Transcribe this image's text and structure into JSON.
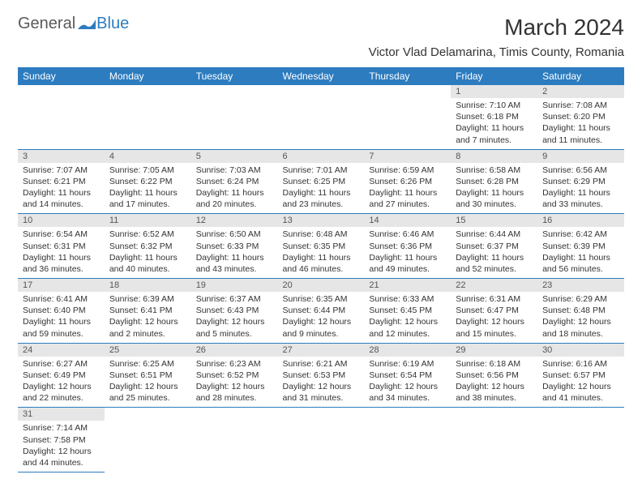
{
  "brand": {
    "part1": "General",
    "part2": "Blue",
    "colors": {
      "text": "#5a5a5a",
      "accent": "#2d7cc0"
    }
  },
  "title": "March 2024",
  "location": "Victor Vlad Delamarina, Timis County, Romania",
  "header_bg": "#2d7cc0",
  "header_text_color": "#ffffff",
  "day_headers": [
    "Sunday",
    "Monday",
    "Tuesday",
    "Wednesday",
    "Thursday",
    "Friday",
    "Saturday"
  ],
  "weeks": [
    [
      null,
      null,
      null,
      null,
      null,
      {
        "n": "1",
        "sunrise": "7:10 AM",
        "sunset": "6:18 PM",
        "day": "11 hours and 7 minutes."
      },
      {
        "n": "2",
        "sunrise": "7:08 AM",
        "sunset": "6:20 PM",
        "day": "11 hours and 11 minutes."
      }
    ],
    [
      {
        "n": "3",
        "sunrise": "7:07 AM",
        "sunset": "6:21 PM",
        "day": "11 hours and 14 minutes."
      },
      {
        "n": "4",
        "sunrise": "7:05 AM",
        "sunset": "6:22 PM",
        "day": "11 hours and 17 minutes."
      },
      {
        "n": "5",
        "sunrise": "7:03 AM",
        "sunset": "6:24 PM",
        "day": "11 hours and 20 minutes."
      },
      {
        "n": "6",
        "sunrise": "7:01 AM",
        "sunset": "6:25 PM",
        "day": "11 hours and 23 minutes."
      },
      {
        "n": "7",
        "sunrise": "6:59 AM",
        "sunset": "6:26 PM",
        "day": "11 hours and 27 minutes."
      },
      {
        "n": "8",
        "sunrise": "6:58 AM",
        "sunset": "6:28 PM",
        "day": "11 hours and 30 minutes."
      },
      {
        "n": "9",
        "sunrise": "6:56 AM",
        "sunset": "6:29 PM",
        "day": "11 hours and 33 minutes."
      }
    ],
    [
      {
        "n": "10",
        "sunrise": "6:54 AM",
        "sunset": "6:31 PM",
        "day": "11 hours and 36 minutes."
      },
      {
        "n": "11",
        "sunrise": "6:52 AM",
        "sunset": "6:32 PM",
        "day": "11 hours and 40 minutes."
      },
      {
        "n": "12",
        "sunrise": "6:50 AM",
        "sunset": "6:33 PM",
        "day": "11 hours and 43 minutes."
      },
      {
        "n": "13",
        "sunrise": "6:48 AM",
        "sunset": "6:35 PM",
        "day": "11 hours and 46 minutes."
      },
      {
        "n": "14",
        "sunrise": "6:46 AM",
        "sunset": "6:36 PM",
        "day": "11 hours and 49 minutes."
      },
      {
        "n": "15",
        "sunrise": "6:44 AM",
        "sunset": "6:37 PM",
        "day": "11 hours and 52 minutes."
      },
      {
        "n": "16",
        "sunrise": "6:42 AM",
        "sunset": "6:39 PM",
        "day": "11 hours and 56 minutes."
      }
    ],
    [
      {
        "n": "17",
        "sunrise": "6:41 AM",
        "sunset": "6:40 PM",
        "day": "11 hours and 59 minutes."
      },
      {
        "n": "18",
        "sunrise": "6:39 AM",
        "sunset": "6:41 PM",
        "day": "12 hours and 2 minutes."
      },
      {
        "n": "19",
        "sunrise": "6:37 AM",
        "sunset": "6:43 PM",
        "day": "12 hours and 5 minutes."
      },
      {
        "n": "20",
        "sunrise": "6:35 AM",
        "sunset": "6:44 PM",
        "day": "12 hours and 9 minutes."
      },
      {
        "n": "21",
        "sunrise": "6:33 AM",
        "sunset": "6:45 PM",
        "day": "12 hours and 12 minutes."
      },
      {
        "n": "22",
        "sunrise": "6:31 AM",
        "sunset": "6:47 PM",
        "day": "12 hours and 15 minutes."
      },
      {
        "n": "23",
        "sunrise": "6:29 AM",
        "sunset": "6:48 PM",
        "day": "12 hours and 18 minutes."
      }
    ],
    [
      {
        "n": "24",
        "sunrise": "6:27 AM",
        "sunset": "6:49 PM",
        "day": "12 hours and 22 minutes."
      },
      {
        "n": "25",
        "sunrise": "6:25 AM",
        "sunset": "6:51 PM",
        "day": "12 hours and 25 minutes."
      },
      {
        "n": "26",
        "sunrise": "6:23 AM",
        "sunset": "6:52 PM",
        "day": "12 hours and 28 minutes."
      },
      {
        "n": "27",
        "sunrise": "6:21 AM",
        "sunset": "6:53 PM",
        "day": "12 hours and 31 minutes."
      },
      {
        "n": "28",
        "sunrise": "6:19 AM",
        "sunset": "6:54 PM",
        "day": "12 hours and 34 minutes."
      },
      {
        "n": "29",
        "sunrise": "6:18 AM",
        "sunset": "6:56 PM",
        "day": "12 hours and 38 minutes."
      },
      {
        "n": "30",
        "sunrise": "6:16 AM",
        "sunset": "6:57 PM",
        "day": "12 hours and 41 minutes."
      }
    ],
    [
      {
        "n": "31",
        "sunrise": "7:14 AM",
        "sunset": "7:58 PM",
        "day": "12 hours and 44 minutes."
      },
      null,
      null,
      null,
      null,
      null,
      null
    ]
  ],
  "labels": {
    "sunrise": "Sunrise: ",
    "sunset": "Sunset: ",
    "daylight": "Daylight: "
  }
}
